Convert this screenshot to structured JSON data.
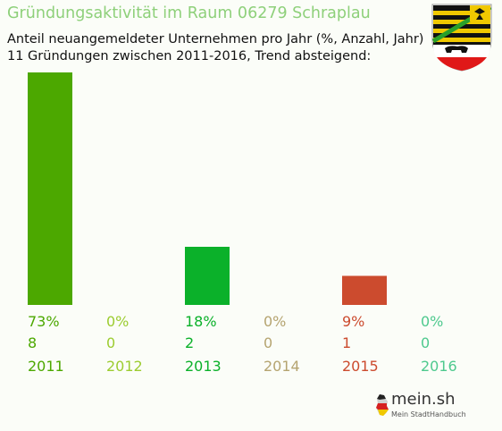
{
  "header": {
    "title": "Gründungsaktivität im Raum 06279 Schraplau",
    "subtitle_line1": "Anteil neuangemeldeter Unternehmen pro Jahr (%, Anzahl, Jahr)",
    "subtitle_line2": "11 Gründungen zwischen 2011-2016, Trend absteigend:"
  },
  "branding": {
    "logo_text": "mein.sh",
    "logo_subtext": "Mein StadtHandbuch"
  },
  "chart_data": {
    "type": "bar",
    "categories": [
      "2011",
      "2012",
      "2013",
      "2014",
      "2015",
      "2016"
    ],
    "percent_labels": [
      "73%",
      "0%",
      "18%",
      "0%",
      "9%",
      "0%"
    ],
    "values": [
      8,
      0,
      2,
      0,
      1,
      0
    ],
    "ylim": [
      0,
      8
    ],
    "grid": false,
    "colors": [
      "#4ca800",
      "#9ccc30",
      "#0bb12a",
      "#b5a470",
      "#cc4b2e",
      "#4ec98e"
    ]
  }
}
